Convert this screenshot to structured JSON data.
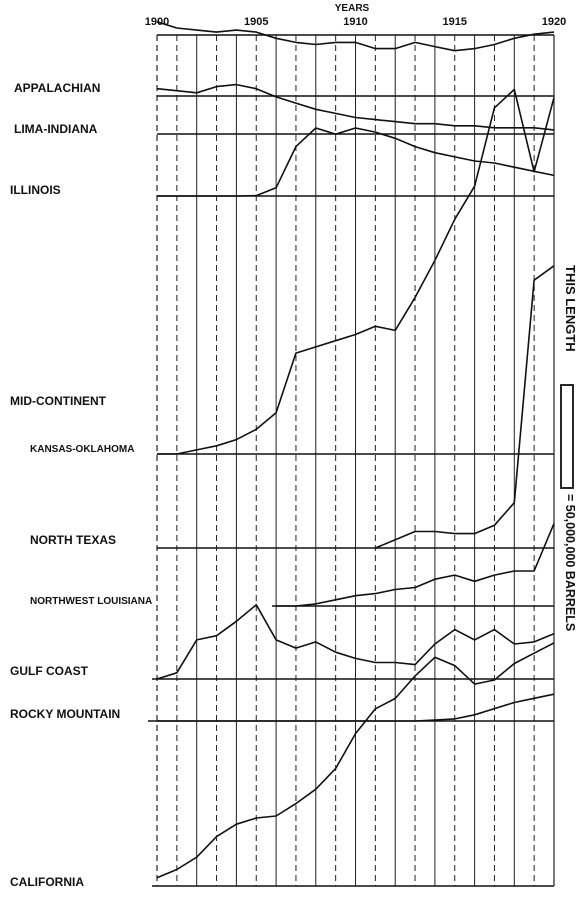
{
  "chart_data": {
    "type": "line",
    "title": "",
    "xlabel": "YEARS",
    "ylabel": "",
    "x": [
      1900,
      1901,
      1902,
      1903,
      1904,
      1905,
      1906,
      1907,
      1908,
      1909,
      1910,
      1911,
      1912,
      1913,
      1914,
      1915,
      1916,
      1917,
      1918,
      1919,
      1920
    ],
    "x_tick_labels": [
      "1900",
      "1905",
      "1910",
      "1915",
      "1920"
    ],
    "scale_note": {
      "left_text": "THIS LENGTH",
      "right_text": "= 50,000,000 BARRELS",
      "barrels_per_bar": 50000000
    },
    "y_unit": "millions of barrels",
    "grid": true,
    "series": [
      {
        "name": "APPALACHIAN",
        "values": [
          36,
          33,
          32,
          31,
          32,
          31,
          28,
          26,
          25,
          26,
          26,
          23,
          23,
          26,
          24,
          22,
          23,
          25,
          28,
          30,
          31
        ]
      },
      {
        "name": "LIMA-INDIANA",
        "values": [
          22,
          21,
          20,
          23,
          24,
          22,
          18,
          15,
          12,
          10,
          8,
          7,
          6,
          5,
          5,
          4,
          4,
          3,
          3,
          3,
          2
        ]
      },
      {
        "name": "ILLINOIS",
        "values": [
          0,
          0,
          0,
          0,
          0,
          0.2,
          4,
          24,
          33,
          30,
          33,
          31,
          28,
          24,
          21,
          19,
          17,
          16,
          14,
          12,
          10
        ]
      },
      {
        "name": "MID-CONTINENT",
        "sublabel": "KANSAS-OKLAHOMA",
        "values": [
          0,
          0,
          2,
          4,
          7,
          12,
          20,
          49,
          52,
          55,
          58,
          62,
          60,
          76,
          94,
          114,
          130,
          168,
          177,
          137,
          173
        ]
      },
      {
        "name": "NORTH TEXAS",
        "values": [
          null,
          null,
          null,
          null,
          null,
          null,
          null,
          null,
          null,
          null,
          null,
          0,
          4,
          8,
          8,
          7,
          7,
          11,
          22,
          130,
          137
        ]
      },
      {
        "name": "NORTHWEST LOUISIANA",
        "values": [
          null,
          null,
          null,
          null,
          null,
          null,
          0,
          0,
          1,
          3,
          5,
          6,
          8,
          9,
          13,
          15,
          12,
          15,
          17,
          17,
          40
        ]
      },
      {
        "name": "GULF COAST",
        "values": [
          0,
          3,
          19,
          21,
          28,
          36,
          19,
          15,
          18,
          13,
          10,
          8,
          8,
          7,
          17,
          24,
          19,
          24,
          17,
          18,
          22
        ]
      },
      {
        "name": "ROCKY MOUNTAIN",
        "values": [
          0,
          0,
          0,
          0,
          0,
          0,
          0,
          0,
          0,
          0,
          0,
          0,
          0,
          0,
          0.5,
          1,
          3,
          6,
          9,
          11,
          13
        ]
      },
      {
        "name": "CALIFORNIA",
        "values": [
          4,
          8,
          14,
          24,
          30,
          33,
          34,
          40,
          47,
          57,
          74,
          86,
          91,
          102,
          111,
          107,
          98,
          100,
          108,
          113,
          118
        ]
      }
    ]
  }
}
